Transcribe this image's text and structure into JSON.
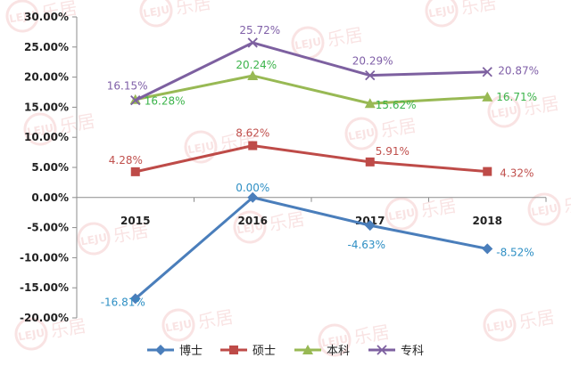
{
  "chart_data": {
    "type": "line",
    "categories": [
      "2015",
      "2016",
      "2017",
      "2018"
    ],
    "ylim": [
      -20,
      30
    ],
    "yticks": [
      30,
      25,
      20,
      15,
      10,
      5,
      0,
      -5,
      -10,
      -15,
      -20
    ],
    "ytick_labels": [
      "30.00%",
      "25.00%",
      "20.00%",
      "15.00%",
      "10.00%",
      "5.00%",
      "0.00%",
      "-5.00%",
      "-10.00%",
      "-15.00%",
      "-20.00%"
    ],
    "grid": false,
    "legend_position": "bottom",
    "series": [
      {
        "name": "博士",
        "values": [
          -16.81,
          0.0,
          -4.63,
          -8.52
        ],
        "labels": [
          "-16.81%",
          "0.00%",
          "-4.63%",
          "-8.52%"
        ],
        "color": "#4a7ebb",
        "marker": "diamond"
      },
      {
        "name": "硕士",
        "values": [
          4.28,
          8.62,
          5.91,
          4.32
        ],
        "labels": [
          "4.28%",
          "8.62%",
          "5.91%",
          "4.32%"
        ],
        "color": "#be4b48",
        "marker": "square"
      },
      {
        "name": "本科",
        "values": [
          16.28,
          20.24,
          15.62,
          16.71
        ],
        "labels": [
          "16.28%",
          "20.24%",
          "15.62%",
          "16.71%"
        ],
        "color": "#98b954",
        "marker": "triangle"
      },
      {
        "name": "专科",
        "values": [
          16.15,
          25.72,
          20.29,
          20.87
        ],
        "labels": [
          "16.15%",
          "25.72%",
          "20.29%",
          "20.87%"
        ],
        "color": "#7d60a0",
        "marker": "x"
      }
    ],
    "label_colors": {
      "博士": "#2e8fc4",
      "硕士": "#c0504d",
      "本科": "#3cb44b",
      "专科": "#8060a8"
    }
  },
  "watermark": {
    "text": "乐居",
    "logo": "LEJU"
  }
}
